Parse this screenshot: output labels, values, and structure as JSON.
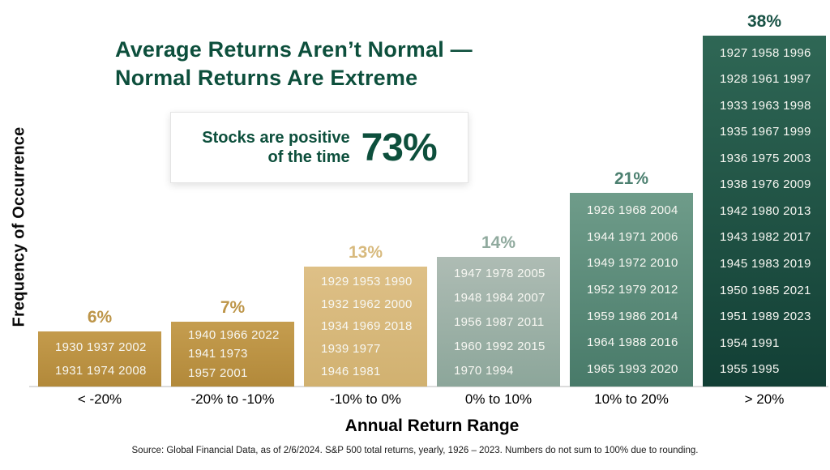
{
  "title": {
    "line1": "Average Returns Aren’t Normal —",
    "line2": "Normal Returns Are Extreme"
  },
  "callout": {
    "line1": "Stocks are positive",
    "line2": "of the time",
    "value": "73%"
  },
  "ylabel": "Frequency of Occurrence",
  "xlabel": "Annual Return Range",
  "source": "Source: Global Financial Data, as of 2/6/2024. S&P 500 total returns, yearly, 1926 – 2023. Numbers do not sum to 100% due to rounding.",
  "chart_data": {
    "type": "bar",
    "title": "Average Returns Aren’t Normal — Normal Returns Are Extreme",
    "xlabel": "Annual Return Range",
    "ylabel": "Frequency of Occurrence",
    "categories": [
      "< -20%",
      "-20% to -10%",
      "-10% to 0%",
      "0% to 10%",
      "10% to 20%",
      "> 20%"
    ],
    "values": [
      6,
      7,
      13,
      14,
      21,
      38
    ],
    "ylim": [
      0,
      38
    ],
    "grid": false,
    "legend": "none",
    "bars": [
      {
        "label": "< -20%",
        "pct": "6%",
        "value": 6,
        "color_top": "#c49b4c",
        "color_bottom": "#b2893a",
        "label_color": "#bd9548",
        "rows": [
          "1930 1937 2002",
          "1931 1974 2008"
        ]
      },
      {
        "label": "-20% to -10%",
        "pct": "7%",
        "value": 7,
        "color_top": "#c59d4f",
        "color_bottom": "#b2893a",
        "label_color": "#bd9548",
        "rows": [
          "1940 1966 2022",
          "1941 1973",
          "1957 2001"
        ]
      },
      {
        "label": "-10% to 0%",
        "pct": "13%",
        "value": 13,
        "color_top": "#dec087",
        "color_bottom": "#d1b170",
        "label_color": "#d8ba7e",
        "rows": [
          "1929 1953 1990",
          "1932 1962 2000",
          "1934 1969 2018",
          "1939 1977",
          "1946 1981"
        ]
      },
      {
        "label": "0% to 10%",
        "pct": "14%",
        "value": 14,
        "color_top": "#aebcb4",
        "color_bottom": "#8ca69a",
        "label_color": "#90aa9e",
        "rows": [
          "1947 1978 2005",
          "1948 1984 2007",
          "1956 1987 2011",
          "1960 1992 2015",
          "1970 1994"
        ]
      },
      {
        "label": "10% to 20%",
        "pct": "21%",
        "value": 21,
        "color_top": "#6f9c8a",
        "color_bottom": "#487a69",
        "label_color": "#4c8070",
        "rows": [
          "1926 1968 2004",
          "1944 1971 2006",
          "1949 1972 2010",
          "1952 1979 2012",
          "1959 1986 2014",
          "1964 1988 2016",
          "1965 1993 2020"
        ]
      },
      {
        "label": "> 20%",
        "pct": "38%",
        "value": 38,
        "color_top": "#2f6755",
        "color_bottom": "#123f35",
        "label_color": "#1a5346",
        "rows": [
          "1927 1958 1996",
          "1928 1961 1997",
          "1933 1963 1998",
          "1935 1967 1999",
          "1936 1975 2003",
          "1938 1976 2009",
          "1942 1980 2013",
          "1943 1982 2017",
          "1945 1983 2019",
          "1950 1985 2021",
          "1951 1989 2023",
          "1954 1991",
          "1955 1995"
        ]
      }
    ]
  }
}
